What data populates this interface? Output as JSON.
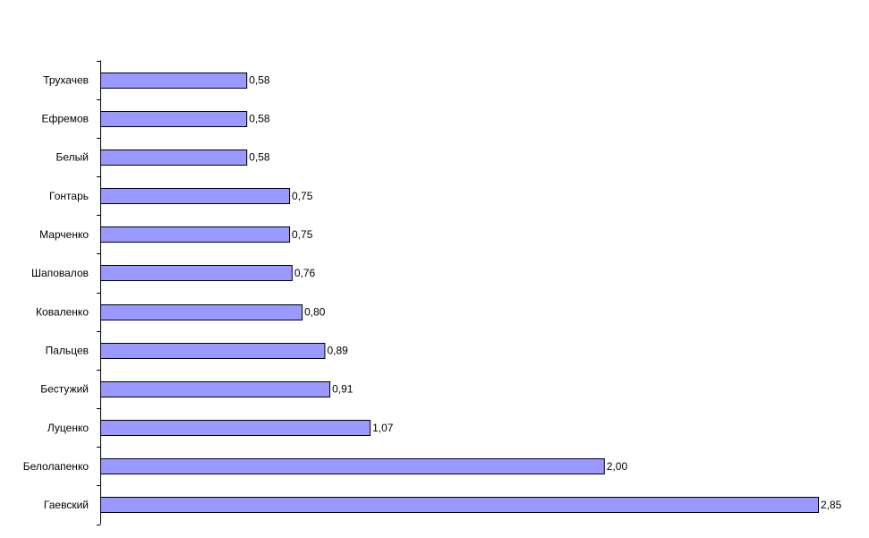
{
  "chart_data": {
    "type": "bar",
    "orientation": "horizontal",
    "categories": [
      "Трухачев",
      "Ефремов",
      "Белый",
      "Гонтарь",
      "Марченко",
      "Шаповалов",
      "Коваленко",
      "Пальцев",
      "Бестужий",
      "Луценко",
      "Белолапенко",
      "Гаевский"
    ],
    "values": [
      0.58,
      0.58,
      0.58,
      0.75,
      0.75,
      0.76,
      0.8,
      0.89,
      0.91,
      1.07,
      2.0,
      2.85
    ],
    "value_labels": [
      "0,58",
      "0,58",
      "0,58",
      "0,75",
      "0,75",
      "0,76",
      "0,80",
      "0,89",
      "0,91",
      "1,07",
      "2,00",
      "2,85"
    ],
    "color": "#9999ff"
  }
}
